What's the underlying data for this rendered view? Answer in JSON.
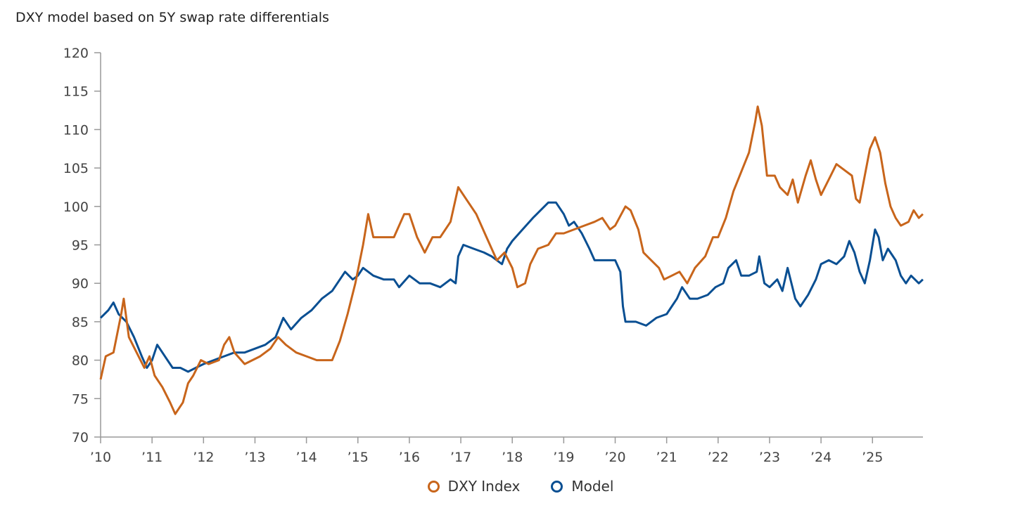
{
  "chart_data": {
    "type": "line",
    "title": "DXY model based on 5Y swap rate differentials",
    "xlabel": "",
    "ylabel": "",
    "ylim": [
      70,
      120
    ],
    "xlim": [
      2010,
      2026
    ],
    "yticks": [
      "70",
      "75",
      "80",
      "85",
      "90",
      "95",
      "100",
      "105",
      "110",
      "115",
      "120"
    ],
    "xticks": [
      "’10",
      "’11",
      "’12",
      "’13",
      "’14",
      "’15",
      "’16",
      "’17",
      "’18",
      "’19",
      "’20",
      "’21",
      "’22",
      "’23",
      "’24",
      "’25"
    ],
    "grid": false,
    "legend_position": "bottom",
    "series": [
      {
        "name": "DXY Index",
        "color": "#C8651B",
        "x": [
          2010.0,
          2010.1,
          2010.25,
          2010.4,
          2010.45,
          2010.55,
          2010.7,
          2010.85,
          2010.95,
          2011.05,
          2011.2,
          2011.35,
          2011.45,
          2011.6,
          2011.7,
          2011.8,
          2011.95,
          2012.1,
          2012.3,
          2012.4,
          2012.5,
          2012.6,
          2012.8,
          2012.95,
          2013.1,
          2013.3,
          2013.45,
          2013.6,
          2013.8,
          2014.0,
          2014.2,
          2014.4,
          2014.5,
          2014.65,
          2014.8,
          2014.95,
          2015.1,
          2015.2,
          2015.3,
          2015.5,
          2015.7,
          2015.9,
          2016.0,
          2016.15,
          2016.3,
          2016.45,
          2016.6,
          2016.8,
          2016.95,
          2017.1,
          2017.3,
          2017.5,
          2017.7,
          2017.85,
          2018.0,
          2018.1,
          2018.25,
          2018.35,
          2018.5,
          2018.7,
          2018.85,
          2019.0,
          2019.2,
          2019.4,
          2019.6,
          2019.75,
          2019.9,
          2020.0,
          2020.2,
          2020.3,
          2020.45,
          2020.55,
          2020.7,
          2020.85,
          2020.95,
          2021.1,
          2021.25,
          2021.4,
          2021.55,
          2021.75,
          2021.9,
          2022.0,
          2022.15,
          2022.3,
          2022.45,
          2022.6,
          2022.72,
          2022.77,
          2022.85,
          2022.95,
          2023.1,
          2023.2,
          2023.35,
          2023.45,
          2023.55,
          2023.7,
          2023.8,
          2023.9,
          2024.0,
          2024.15,
          2024.3,
          2024.5,
          2024.6,
          2024.68,
          2024.75,
          2024.85,
          2024.95,
          2025.05,
          2025.15,
          2025.25,
          2025.35,
          2025.45,
          2025.55,
          2025.7,
          2025.8,
          2025.9,
          2025.98
        ],
        "values": [
          77.5,
          80.5,
          81,
          86,
          88,
          83,
          81,
          79,
          80.5,
          78,
          76.5,
          74.5,
          73,
          74.5,
          77,
          78,
          80,
          79.5,
          80,
          82,
          83,
          81,
          79.5,
          80,
          80.5,
          81.5,
          83,
          82,
          81,
          80.5,
          80,
          80,
          80,
          82.5,
          86,
          90,
          95,
          99,
          96,
          96,
          96,
          99,
          99,
          96,
          94,
          96,
          96,
          98,
          102.5,
          101,
          99,
          96,
          93,
          94,
          92,
          89.5,
          90,
          92.5,
          94.5,
          95,
          96.5,
          96.5,
          97,
          97.5,
          98,
          98.5,
          97,
          97.5,
          100,
          99.5,
          97,
          94,
          93,
          92,
          90.5,
          91,
          91.5,
          90,
          92,
          93.5,
          96,
          96,
          98.5,
          102,
          104.5,
          107,
          111,
          113,
          110.5,
          104,
          104,
          102.5,
          101.5,
          103.5,
          100.5,
          104,
          106,
          103.5,
          101.5,
          103.5,
          105.5,
          104.5,
          104,
          101,
          100.5,
          104,
          107.5,
          109,
          107,
          103,
          100,
          98.5,
          97.5,
          98,
          99.5,
          98.5,
          99
        ]
      },
      {
        "name": "Model",
        "color": "#0A4F92",
        "x": [
          2010.0,
          2010.15,
          2010.25,
          2010.35,
          2010.5,
          2010.65,
          2010.8,
          2010.9,
          2011.0,
          2011.1,
          2011.25,
          2011.4,
          2011.55,
          2011.7,
          2011.85,
          2012.0,
          2012.2,
          2012.4,
          2012.6,
          2012.8,
          2013.0,
          2013.2,
          2013.4,
          2013.55,
          2013.7,
          2013.9,
          2014.1,
          2014.3,
          2014.5,
          2014.6,
          2014.75,
          2014.9,
          2015.0,
          2015.1,
          2015.3,
          2015.5,
          2015.7,
          2015.8,
          2016.0,
          2016.2,
          2016.4,
          2016.6,
          2016.8,
          2016.9,
          2016.95,
          2017.05,
          2017.25,
          2017.45,
          2017.6,
          2017.8,
          2017.9,
          2018.0,
          2018.2,
          2018.4,
          2018.55,
          2018.7,
          2018.85,
          2019.0,
          2019.1,
          2019.2,
          2019.35,
          2019.5,
          2019.6,
          2019.8,
          2020.0,
          2020.1,
          2020.15,
          2020.2,
          2020.4,
          2020.6,
          2020.8,
          2021.0,
          2021.1,
          2021.2,
          2021.3,
          2021.45,
          2021.6,
          2021.8,
          2021.95,
          2022.1,
          2022.2,
          2022.35,
          2022.45,
          2022.6,
          2022.75,
          2022.8,
          2022.9,
          2023.0,
          2023.15,
          2023.25,
          2023.35,
          2023.5,
          2023.6,
          2023.75,
          2023.9,
          2024.0,
          2024.15,
          2024.3,
          2024.45,
          2024.55,
          2024.65,
          2024.75,
          2024.85,
          2024.95,
          2025.05,
          2025.12,
          2025.2,
          2025.3,
          2025.45,
          2025.55,
          2025.65,
          2025.75,
          2025.9,
          2025.98
        ],
        "values": [
          85.5,
          86.5,
          87.5,
          86,
          85,
          83,
          80.5,
          79,
          80,
          82,
          80.5,
          79,
          79,
          78.5,
          79,
          79.5,
          80,
          80.5,
          81,
          81,
          81.5,
          82,
          83,
          85.5,
          84,
          85.5,
          86.5,
          88,
          89,
          90,
          91.5,
          90.5,
          91,
          92,
          91,
          90.5,
          90.5,
          89.5,
          91,
          90,
          90,
          89.5,
          90.5,
          90,
          93.5,
          95,
          94.5,
          94,
          93.5,
          92.5,
          94.5,
          95.5,
          97,
          98.5,
          99.5,
          100.5,
          100.5,
          99,
          97.5,
          98,
          96.5,
          94.5,
          93,
          93,
          93,
          91.5,
          87,
          85,
          85,
          84.5,
          85.5,
          86,
          87,
          88,
          89.5,
          88,
          88,
          88.5,
          89.5,
          90,
          92,
          93,
          91,
          91,
          91.5,
          93.5,
          90,
          89.5,
          90.5,
          89,
          92,
          88,
          87,
          88.5,
          90.5,
          92.5,
          93,
          92.5,
          93.5,
          95.5,
          94,
          91.5,
          90,
          93,
          97,
          96,
          93,
          94.5,
          93,
          91,
          90,
          91,
          90,
          90.5
        ]
      }
    ]
  }
}
